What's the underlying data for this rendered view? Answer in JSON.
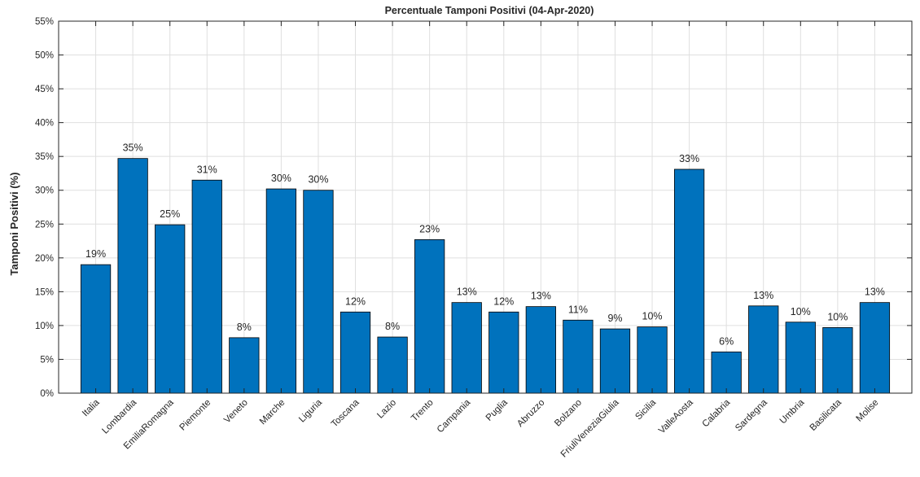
{
  "chart_data": {
    "type": "bar",
    "title": "Percentuale Tamponi Positivi (04-Apr-2020)",
    "xlabel": "",
    "ylabel": "Tamponi Positivi (%)",
    "ylim": [
      0,
      55
    ],
    "yticks": [
      0,
      5,
      10,
      15,
      20,
      25,
      30,
      35,
      40,
      45,
      50,
      55
    ],
    "ytick_suffix": "%",
    "grid": true,
    "bar_color": "#0072bd",
    "categories": [
      "Italia",
      "Lombardia",
      "EmiliaRomagna",
      "Piemonte",
      "Veneto",
      "Marche",
      "Liguria",
      "Toscana",
      "Lazio",
      "Trento",
      "Campania",
      "Puglia",
      "Abruzzo",
      "Bolzano",
      "FriuliVeneziaGiulia",
      "Sicilia",
      "ValleAosta",
      "Calabria",
      "Sardegna",
      "Umbria",
      "Basilicata",
      "Molise"
    ],
    "values": [
      19.0,
      34.7,
      24.9,
      31.5,
      8.2,
      30.2,
      30.0,
      12.0,
      8.3,
      22.7,
      13.4,
      12.0,
      12.8,
      10.8,
      9.5,
      9.8,
      33.1,
      6.1,
      12.9,
      10.5,
      9.7,
      13.4
    ],
    "data_labels": [
      "19%",
      "35%",
      "25%",
      "31%",
      "8%",
      "30%",
      "30%",
      "12%",
      "8%",
      "23%",
      "13%",
      "12%",
      "13%",
      "11%",
      "9%",
      "10%",
      "33%",
      "6%",
      "13%",
      "10%",
      "10%",
      "13%"
    ]
  }
}
